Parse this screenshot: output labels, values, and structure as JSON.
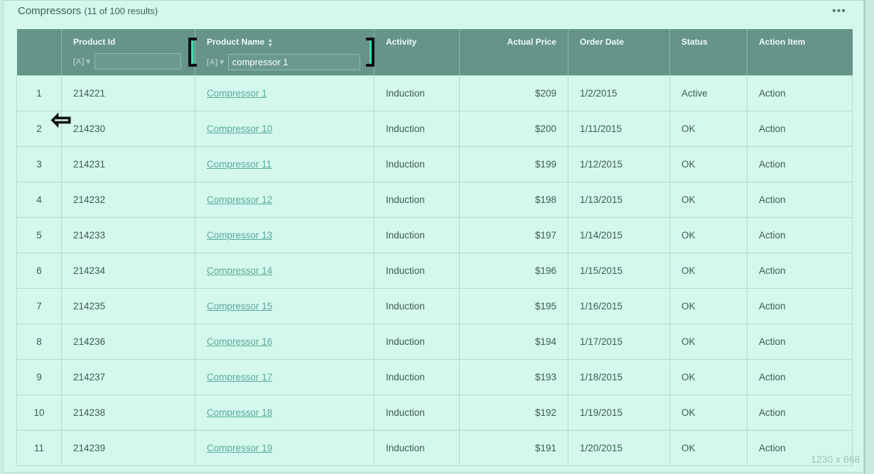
{
  "panel": {
    "title": "Compressors",
    "count": "(11 of 100 results)",
    "more": "•••"
  },
  "columns": [
    "",
    "Product Id",
    "Product Name",
    "Activity",
    "Actual Price",
    "Order Date",
    "Status",
    "Action Item"
  ],
  "filters": {
    "icon": "[A] ▾",
    "product_id": "",
    "product_name": "compressor 1"
  },
  "rows": [
    [
      "1",
      "214221",
      "Compressor 1",
      "Induction",
      "$209",
      "1/2/2015",
      "Active",
      "Action"
    ],
    [
      "2",
      "214230",
      "Compressor 10",
      "Induction",
      "$200",
      "1/11/2015",
      "OK",
      "Action"
    ],
    [
      "3",
      "214231",
      "Compressor 11",
      "Induction",
      "$199",
      "1/12/2015",
      "OK",
      "Action"
    ],
    [
      "4",
      "214232",
      "Compressor 12",
      "Induction",
      "$198",
      "1/13/2015",
      "OK",
      "Action"
    ],
    [
      "5",
      "214233",
      "Compressor 13",
      "Induction",
      "$197",
      "1/14/2015",
      "OK",
      "Action"
    ],
    [
      "6",
      "214234",
      "Compressor 14",
      "Induction",
      "$196",
      "1/15/2015",
      "OK",
      "Action"
    ],
    [
      "7",
      "214235",
      "Compressor 15",
      "Induction",
      "$195",
      "1/16/2015",
      "OK",
      "Action"
    ],
    [
      "8",
      "214236",
      "Compressor 16",
      "Induction",
      "$194",
      "1/17/2015",
      "OK",
      "Action"
    ],
    [
      "9",
      "214237",
      "Compressor 17",
      "Induction",
      "$193",
      "1/18/2015",
      "OK",
      "Action"
    ],
    [
      "10",
      "214238",
      "Compressor 18",
      "Induction",
      "$192",
      "1/19/2015",
      "OK",
      "Action"
    ],
    [
      "11",
      "214239",
      "Compressor 19",
      "Induction",
      "$191",
      "1/20/2015",
      "OK",
      "Action"
    ]
  ],
  "watermark": "1230 x 668",
  "colors": {
    "header": "#66938a",
    "background": "#d4f9ec",
    "link": "#5ca79c",
    "highlight": "#2ee6aa"
  }
}
